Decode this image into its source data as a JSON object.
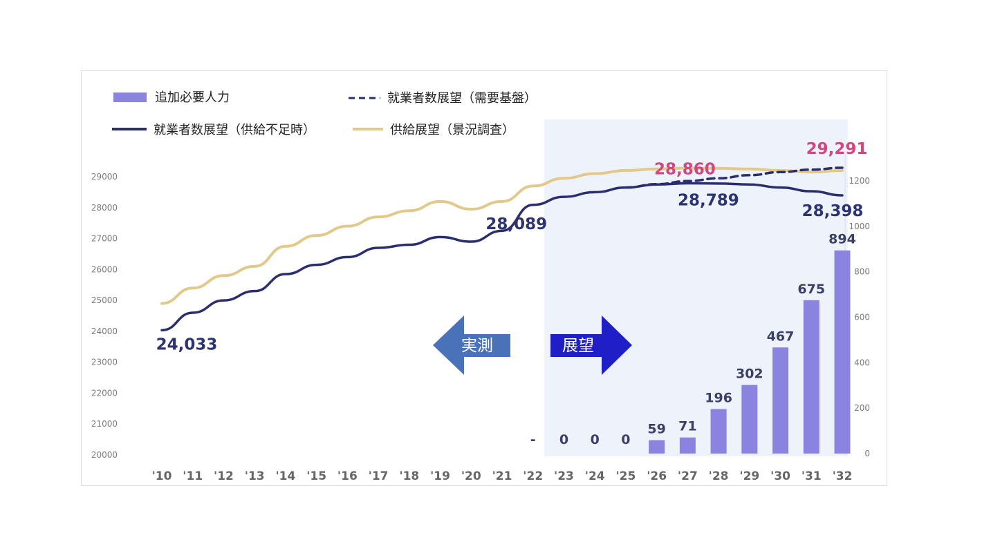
{
  "chart_data": {
    "type": "bar+line",
    "categories": [
      "'10",
      "'11",
      "'12",
      "'13",
      "'14",
      "'15",
      "'16",
      "'17",
      "'18",
      "'19",
      "'20",
      "'21",
      "'22",
      "'23",
      "'24",
      "'25",
      "'26",
      "'27",
      "'28",
      "'29",
      "'30",
      "'31",
      "'32"
    ],
    "bars": {
      "name": "追加必要人力",
      "axis": "right",
      "color": "#8a84e0",
      "labels": [
        "",
        "",
        "",
        "",
        "",
        "",
        "",
        "",
        "",
        "",
        "",
        "",
        "-",
        "0",
        "0",
        "0",
        "59",
        "71",
        "196",
        "302",
        "467",
        "675",
        "894"
      ],
      "values": [
        null,
        null,
        null,
        null,
        null,
        null,
        null,
        null,
        null,
        null,
        null,
        null,
        null,
        0,
        0,
        0,
        59,
        71,
        196,
        302,
        467,
        675,
        894
      ]
    },
    "series": [
      {
        "name": "就業者数展望（供給不足時）",
        "axis": "left",
        "style": "solid",
        "color": "#2a2d6e",
        "values": [
          24033,
          24600,
          25000,
          25300,
          25850,
          26150,
          26400,
          26700,
          26800,
          27050,
          26900,
          27250,
          28089,
          28350,
          28500,
          28650,
          28750,
          28789,
          28780,
          28750,
          28650,
          28530,
          28398
        ]
      },
      {
        "name": "就業者数展望（需要基盤）",
        "axis": "left",
        "style": "dashed",
        "color": "#2a2d6e",
        "values": [
          null,
          null,
          null,
          null,
          null,
          null,
          null,
          null,
          null,
          null,
          null,
          null,
          null,
          null,
          null,
          28650,
          28760,
          28860,
          28950,
          29050,
          29150,
          29230,
          29291
        ]
      },
      {
        "name": "供給展望（景況調査）",
        "axis": "left",
        "style": "solid",
        "color": "#e2c98a",
        "values": [
          24900,
          25400,
          25800,
          26100,
          26750,
          27100,
          27400,
          27700,
          27900,
          28200,
          27950,
          28200,
          28700,
          28950,
          29100,
          29200,
          29250,
          29280,
          29270,
          29250,
          29200,
          29150,
          29200
        ]
      }
    ],
    "y_left": {
      "ticks": [
        20000,
        21000,
        22000,
        23000,
        24000,
        25000,
        26000,
        27000,
        28000,
        29000
      ],
      "tick_labels": [
        "20000",
        "21000",
        "22000",
        "23000",
        "24000",
        "25000",
        "26000",
        "27000",
        "28000",
        "29000"
      ]
    },
    "y_right": {
      "ticks": [
        0,
        200,
        400,
        600,
        800,
        1000,
        1200
      ],
      "tick_labels": [
        "0",
        "200",
        "400",
        "600",
        "800",
        "1000",
        "1200"
      ]
    },
    "annotations": [
      {
        "text": "24,033",
        "series": 0,
        "index": 0,
        "color": "blue"
      },
      {
        "text": "28,089",
        "series": 0,
        "index": 12,
        "color": "blue"
      },
      {
        "text": "28,789",
        "series": 0,
        "index": 17,
        "color": "blue"
      },
      {
        "text": "28,398",
        "series": 0,
        "index": 22,
        "color": "blue"
      },
      {
        "text": "28,860",
        "series": 1,
        "index": 17,
        "color": "pink"
      },
      {
        "text": "29,291",
        "series": 1,
        "index": 22,
        "color": "pink"
      }
    ],
    "arrows": {
      "left": "実測",
      "right": "展望"
    },
    "legend": {
      "bars": "追加必要人力",
      "dashed": "就業者数展望（需要基盤）",
      "solid_dark": "就業者数展望（供給不足時）",
      "solid_gold": "供給展望（景況調査）"
    },
    "forecast_shade_from_index": 12.5
  }
}
